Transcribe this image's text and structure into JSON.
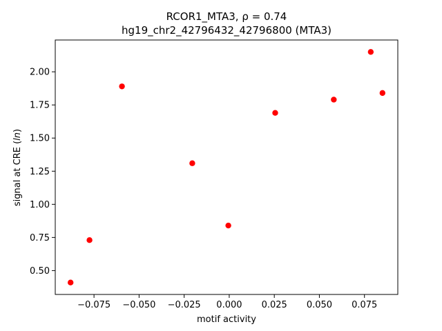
{
  "chart_data": {
    "type": "scatter",
    "title_line1": "RCOR1_MTA3, ρ = 0.74",
    "title_line2": "hg19_chr2_42796432_42796800 (MTA3)",
    "xlabel": "motif activity",
    "ylabel_prefix": "signal at CRE (",
    "ylabel_italic": "ln",
    "ylabel_suffix": ")",
    "xlim": [
      -0.0965,
      0.0935
    ],
    "ylim": [
      0.32,
      2.24
    ],
    "xticks": [
      -0.075,
      -0.05,
      -0.025,
      0.0,
      0.025,
      0.05,
      0.075
    ],
    "xtick_labels": [
      "−0.075",
      "−0.050",
      "−0.025",
      "0.000",
      "0.025",
      "0.050",
      "0.075"
    ],
    "yticks": [
      0.5,
      0.75,
      1.0,
      1.25,
      1.5,
      1.75,
      2.0
    ],
    "ytick_labels": [
      "0.50",
      "0.75",
      "1.00",
      "1.25",
      "1.50",
      "1.75",
      "2.00"
    ],
    "marker_color": "#ff0000",
    "grid": false,
    "points": [
      {
        "x": -0.088,
        "y": 0.41
      },
      {
        "x": -0.0775,
        "y": 0.73
      },
      {
        "x": -0.0595,
        "y": 1.89
      },
      {
        "x": -0.0205,
        "y": 1.31
      },
      {
        "x": -0.0005,
        "y": 0.84
      },
      {
        "x": 0.0255,
        "y": 1.69
      },
      {
        "x": 0.058,
        "y": 1.79
      },
      {
        "x": 0.0785,
        "y": 2.15
      },
      {
        "x": 0.085,
        "y": 1.84
      }
    ]
  }
}
